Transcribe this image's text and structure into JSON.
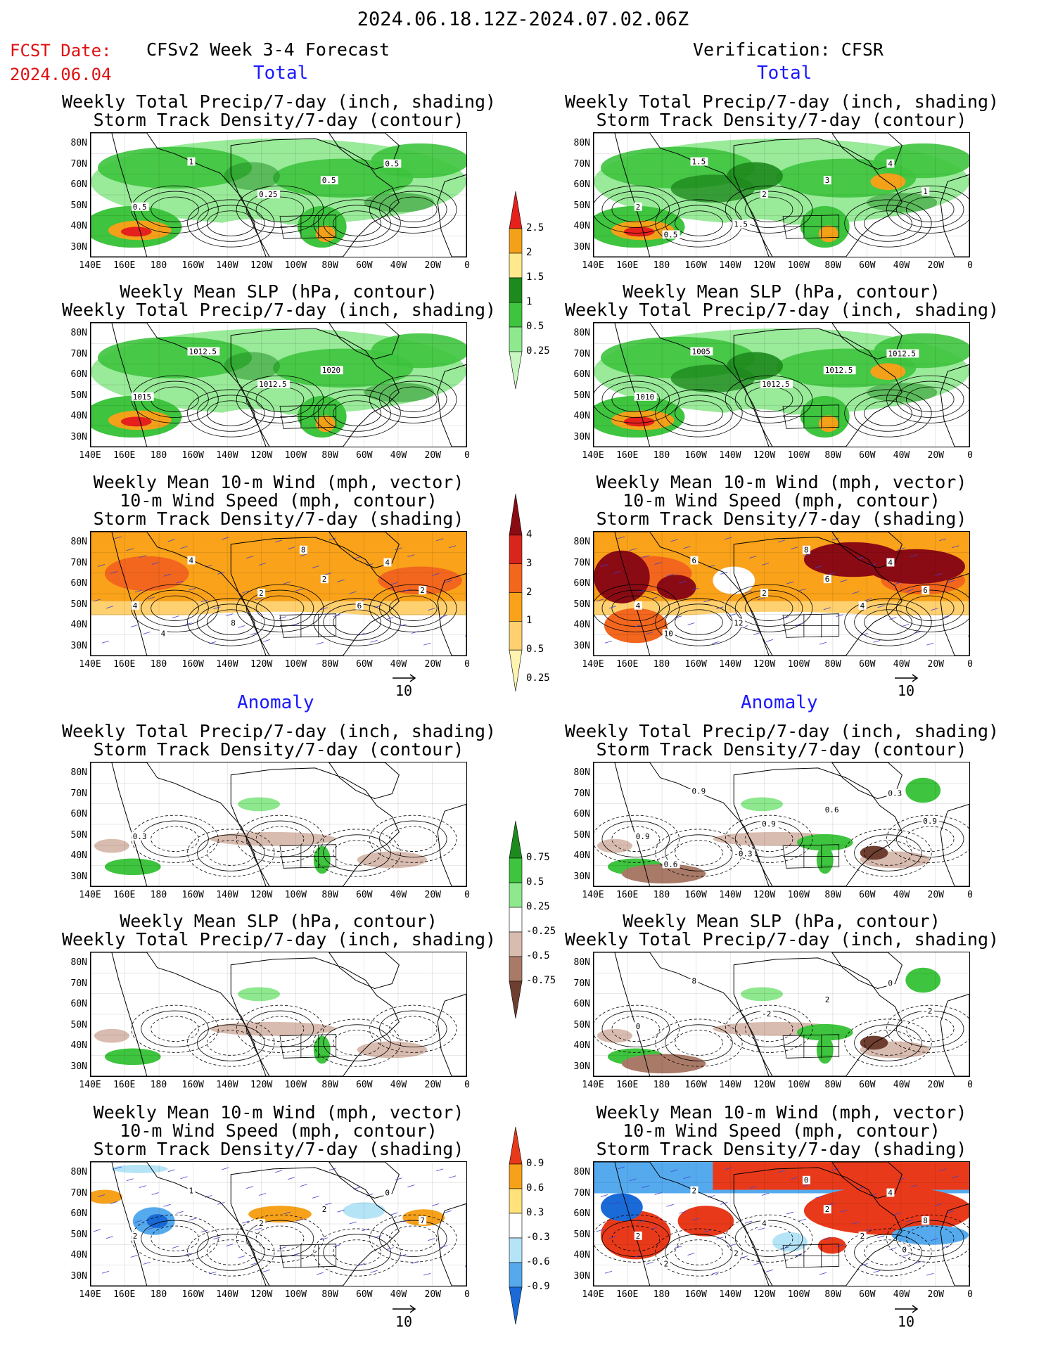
{
  "header": {
    "date_range": "2024.06.18.12Z-2024.07.02.06Z",
    "fcst_label": "FCST Date:",
    "fcst_date": "2024.06.04",
    "left_title": "CFSv2 Week 3-4 Forecast",
    "right_title": "Verification: CFSR",
    "section_total": "Total",
    "section_anomaly": "Anomaly"
  },
  "axes": {
    "lat_labels": [
      "80N",
      "70N",
      "60N",
      "50N",
      "40N",
      "30N"
    ],
    "lon_labels": [
      "140E",
      "160E",
      "180",
      "160W",
      "140W",
      "120W",
      "100W",
      "80W",
      "60W",
      "40W",
      "20W",
      "0"
    ]
  },
  "panels": {
    "precip_storm": {
      "title1": "Weekly Total Precip/7-day (inch, shading)",
      "title2": "Storm Track Density/7-day (contour)"
    },
    "slp_precip": {
      "title1": "Weekly Mean SLP (hPa, contour)",
      "title2": "Weekly Total Precip/7-day (inch, shading)"
    },
    "wind_storm": {
      "title1": "Weekly Mean 10-m Wind (mph, vector)",
      "title2": "10-m Wind Speed (mph, contour)",
      "title3": "Storm Track Density/7-day (shading)"
    }
  },
  "map_labels": {
    "fc_total_precip": [
      "0.5",
      "1",
      "0.25",
      "0.5",
      "0.5"
    ],
    "fc_total_slp": [
      "1015",
      "1012.5",
      "1012.5",
      "1020"
    ],
    "fc_total_wind": [
      "4",
      "4",
      "2",
      "2",
      "4",
      "2",
      "4",
      "8",
      "8",
      "6"
    ],
    "ob_total_precip": [
      "2",
      "1.5",
      "2",
      "3",
      "4",
      "1",
      "0.5",
      "1.5"
    ],
    "ob_total_slp": [
      "1010",
      "1005",
      "1012.5",
      "1012.5",
      "1012.5"
    ],
    "ob_total_wind": [
      "4",
      "6",
      "2",
      "6",
      "4",
      "6",
      "10",
      "12",
      "8",
      "4"
    ],
    "fc_anom_precip": [
      "0.3"
    ],
    "ob_anom_precip": [
      "0.9",
      "0.9",
      "0.9",
      "0.6",
      "0.3",
      "0.9",
      "0.6",
      "-0.3"
    ],
    "ob_anom_slp": [
      "0",
      "8",
      "-2",
      "2",
      "0",
      "-2"
    ],
    "fc_anom_wind": [
      "2",
      "1",
      "2",
      "2",
      "0",
      "7"
    ],
    "ob_anom_wind": [
      "2",
      "2",
      "4",
      "2",
      "4",
      "8",
      "2",
      "2",
      "0",
      "2",
      "0"
    ]
  },
  "colorbars": {
    "precip_total": {
      "labels": [
        "2.5",
        "2",
        "1.5",
        "1",
        "0.5",
        "0.25"
      ],
      "colors": [
        "#e6201c",
        "#f4a11a",
        "#ffe98c",
        "#1d8a1d",
        "#3ec43e",
        "#8ee88e",
        "#c8f5c0"
      ]
    },
    "storm_total": {
      "labels": [
        "4",
        "3",
        "2",
        "1",
        "0.5",
        "0.25"
      ],
      "colors": [
        "#8b0b14",
        "#d8261c",
        "#f2661e",
        "#f9a21a",
        "#ffd070",
        "#fff3b0"
      ]
    },
    "precip_anom": {
      "labels": [
        "0.75",
        "0.5",
        "0.25",
        "-0.25",
        "-0.5",
        "-0.75"
      ],
      "colors": [
        "#1d8a1d",
        "#3ec43e",
        "#8ee88e",
        "#ffffff",
        "#d9bcb0",
        "#a97a68",
        "#6e3e30"
      ]
    },
    "storm_anom": {
      "labels": [
        "0.9",
        "0.6",
        "0.3",
        "-0.3",
        "-0.6",
        "-0.9"
      ],
      "colors": [
        "#e83a1a",
        "#f6a11a",
        "#ffe27a",
        "#ffffff",
        "#b5e4f7",
        "#55aaee",
        "#1a6ad8"
      ]
    }
  },
  "vector_ref": "10",
  "colors": {
    "green": "#3ec43e",
    "dark_green": "#1d8a1d",
    "orange": "#f6a11a",
    "red": "#e6201c",
    "blue_vec": "#4040d0"
  }
}
